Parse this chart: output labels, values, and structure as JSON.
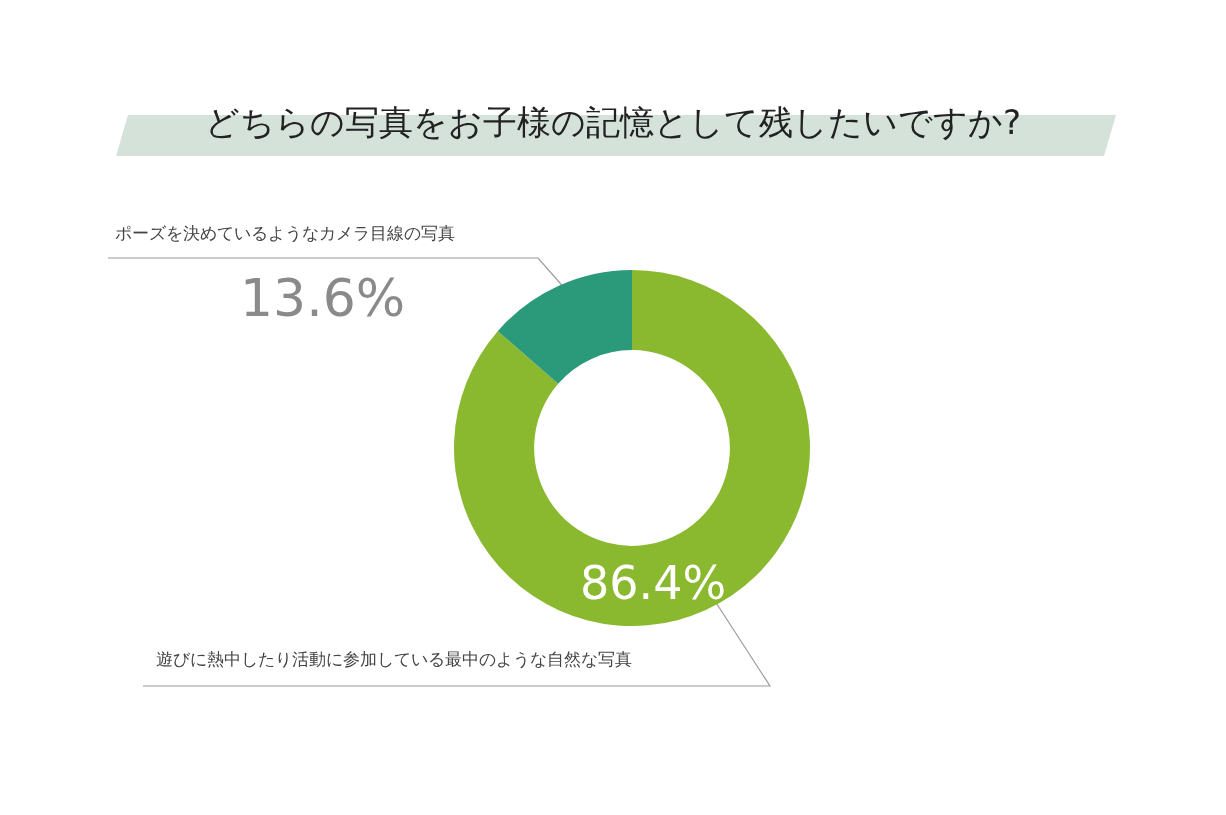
{
  "chart_data": {
    "type": "donut",
    "title": "どちらの写真をお子様の記憶として残したいですか?",
    "categories": [
      "遊びに熱中したり活動に参加している最中のような自然な写真",
      "ポーズを決めているようなカメラ目線の写真"
    ],
    "values": [
      86.4,
      13.6
    ],
    "colors": [
      "#8ab82e",
      "#2a9a7a"
    ],
    "value_labels": [
      "86.4%",
      "13.6%"
    ],
    "legend": false
  }
}
